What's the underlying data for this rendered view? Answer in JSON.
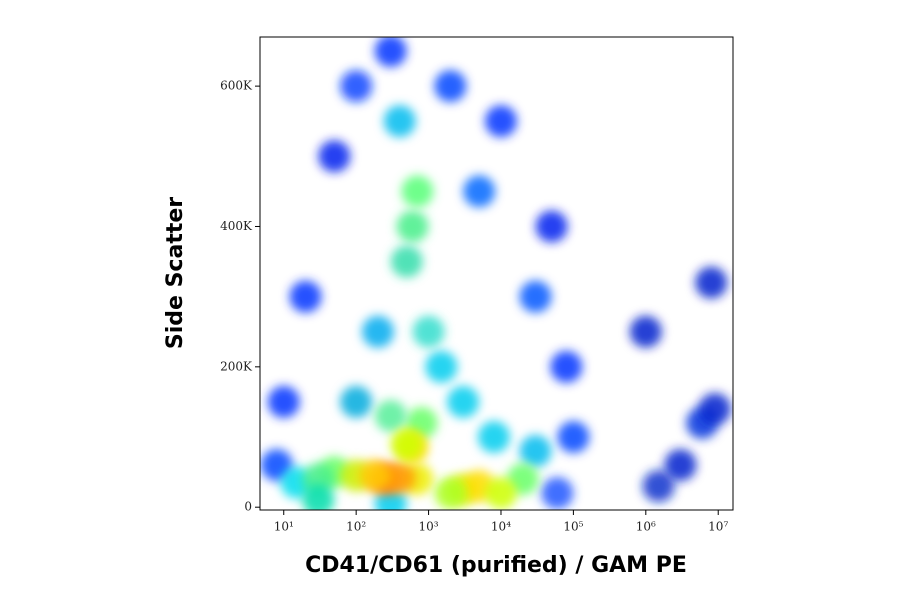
{
  "chart_data": {
    "type": "scatter",
    "xlabel": "CD41/CD61 (purified) / GAM PE",
    "ylabel": "Side Scatter",
    "xscale": "log",
    "xlim": [
      4.7,
      16000000
    ],
    "ylim": [
      -4000,
      670000
    ],
    "xticks": [
      {
        "value": 10,
        "label": "10¹"
      },
      {
        "value": 100,
        "label": "10²"
      },
      {
        "value": 1000,
        "label": "10³"
      },
      {
        "value": 10000,
        "label": "10⁴"
      },
      {
        "value": 100000,
        "label": "10⁵"
      },
      {
        "value": 1000000,
        "label": "10⁶"
      },
      {
        "value": 10000000,
        "label": "10⁷"
      }
    ],
    "yticks": [
      0,
      {
        "value": 200000,
        "label": "200K"
      },
      {
        "value": 400000,
        "label": "400K"
      },
      {
        "value": 600000,
        "label": "600K"
      }
    ],
    "x": [
      20,
      50,
      100,
      300,
      2000,
      10000,
      50000,
      80000,
      100000,
      30000,
      5000,
      10,
      8,
      60000,
      1500000,
      3000000,
      6000000,
      9000000,
      1000000,
      8000000,
      15,
      1500,
      3000,
      400,
      200,
      8000,
      30000,
      100,
      50,
      30,
      800,
      600,
      500,
      700,
      20000,
      300,
      1000,
      30,
      100,
      700,
      3000,
      5000,
      10000,
      2000,
      300,
      250,
      400,
      180,
      600,
      500
    ],
    "y": [
      300000,
      500000,
      600000,
      650000,
      600000,
      550000,
      400000,
      200000,
      100000,
      300000,
      450000,
      150000,
      60000,
      20000,
      30000,
      60000,
      120000,
      140000,
      250000,
      320000,
      35000,
      200000,
      150000,
      550000,
      250000,
      100000,
      80000,
      150000,
      50000,
      40000,
      120000,
      400000,
      350000,
      450000,
      40000,
      130000,
      250000,
      10000,
      45000,
      40000,
      25000,
      30000,
      20000,
      20000,
      5000,
      40000,
      42000,
      45000,
      85000,
      90000
    ],
    "colors": [
      "#0033ff",
      "#0022ee",
      "#1144ff",
      "#0033ff",
      "#0044ff",
      "#0033ff",
      "#0022ee",
      "#0033ff",
      "#0044ff",
      "#0055ff",
      "#0066ff",
      "#0033ff",
      "#0044ff",
      "#2255ff",
      "#1133cc",
      "#0022cc",
      "#0033dd",
      "#0022cc",
      "#0022cc",
      "#0022cc",
      "#00ddee",
      "#00ccee",
      "#00ccee",
      "#00bbee",
      "#00aaee",
      "#00ccee",
      "#00bbee",
      "#00aadd",
      "#66ff66",
      "#44ee88",
      "#66ff66",
      "#44ee88",
      "#33ddaa",
      "#55ff77",
      "#66ff66",
      "#55ee99",
      "#33ddcc",
      "#00ddaa",
      "#ccee00",
      "#eeee00",
      "#ddee00",
      "#ffdd00",
      "#ccff00",
      "#aaff22",
      "#00ccee",
      "#ff6a00",
      "#ff9900",
      "#ffcc00",
      "#ffdd00",
      "#ccff00"
    ]
  }
}
